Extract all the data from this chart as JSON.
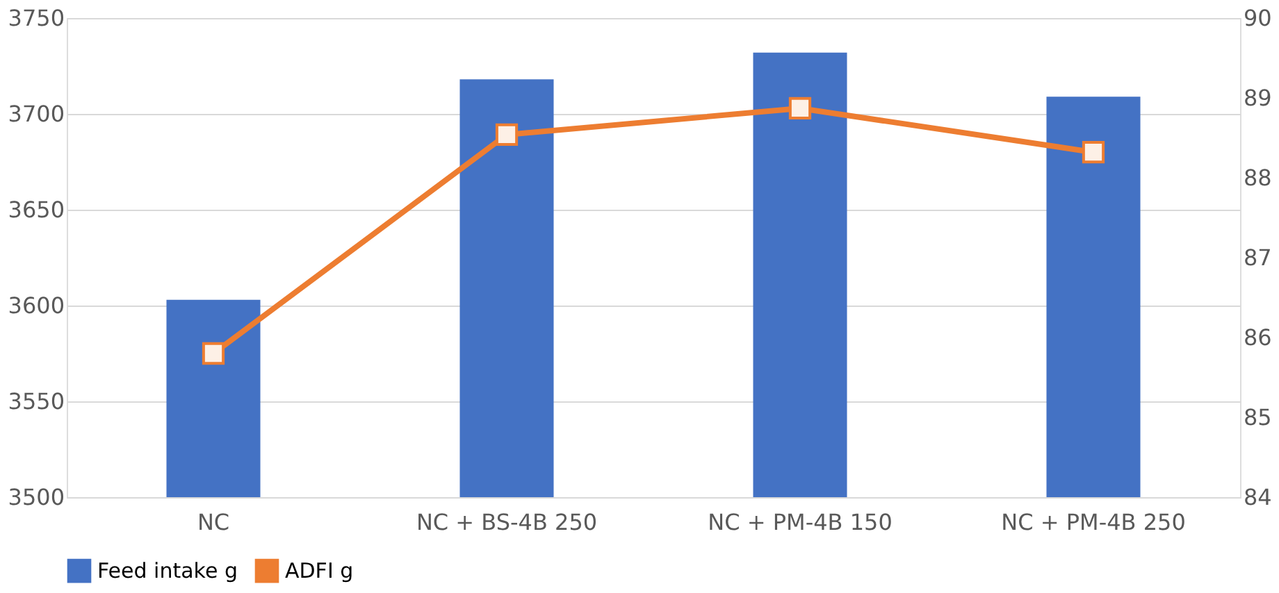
{
  "chart_data": {
    "type": "bar",
    "categories": [
      "NC",
      "NC + BS-4B 250",
      "NC + PM-4B 150",
      "NC + PM-4B 250"
    ],
    "series": [
      {
        "name": "Feed intake g",
        "color": "#4472c4",
        "values": [
          3603,
          3718,
          3732,
          3709
        ]
      },
      {
        "name": "ADFI g",
        "type": "line",
        "axis": "y2",
        "color": "#ed7d31",
        "marker": "square",
        "values": [
          85.8,
          88.54,
          88.87,
          88.32
        ]
      }
    ],
    "ylim": [
      3500,
      3750
    ],
    "yticks": [
      3500,
      3550,
      3600,
      3650,
      3700,
      3750
    ],
    "y2lim": [
      84,
      90
    ],
    "y2ticks": [
      84,
      85,
      86,
      87,
      88,
      89,
      90
    ],
    "grid": "y",
    "legend": "bottom"
  }
}
